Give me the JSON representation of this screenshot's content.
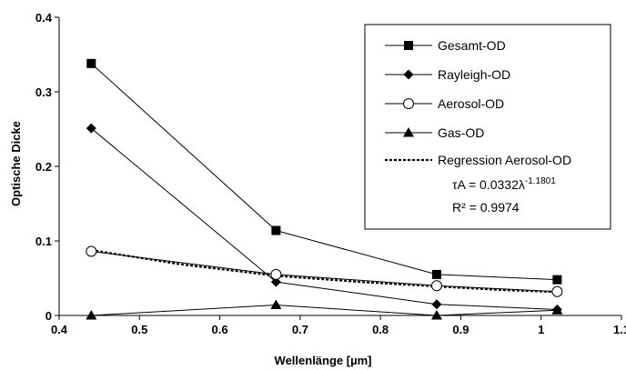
{
  "chart_data": {
    "type": "line",
    "xlabel": "Wellenlänge [µm]",
    "ylabel": "Optische Dicke",
    "xlim": [
      0.4,
      1.1
    ],
    "ylim": [
      0,
      0.4
    ],
    "x_ticks": [
      "0.4",
      "0.5",
      "0.6",
      "0.7",
      "0.8",
      "0.9",
      "1",
      "1.1"
    ],
    "y_ticks": [
      "0",
      "0.1",
      "0.2",
      "0.3",
      "0.4"
    ],
    "grid": false,
    "legend_position": "top-right",
    "x": [
      0.44,
      0.67,
      0.87,
      1.02
    ],
    "series": [
      {
        "name": "Gesamt-OD",
        "marker": "square",
        "values": [
          0.338,
          0.114,
          0.055,
          0.048
        ]
      },
      {
        "name": "Rayleigh-OD",
        "marker": "diamond",
        "values": [
          0.251,
          0.045,
          0.015,
          0.008
        ]
      },
      {
        "name": "Aerosol-OD",
        "marker": "open-circle",
        "values": [
          0.086,
          0.055,
          0.04,
          0.032
        ]
      },
      {
        "name": "Gas-OD",
        "marker": "triangle",
        "values": [
          0.0,
          0.014,
          0.0,
          0.007
        ]
      },
      {
        "name": "Regression Aerosol-OD",
        "style": "dashed",
        "marker": "none",
        "x": [
          0.44,
          0.55,
          0.67,
          0.78,
          0.87,
          0.95,
          1.02
        ],
        "values": [
          0.0877,
          0.0688,
          0.0532,
          0.0446,
          0.039,
          0.0342,
          0.0315
        ]
      }
    ],
    "annotation": {
      "tau_prefix": "τA = 0.0332λ",
      "tau_exponent": "-1.1801",
      "r2": "R² = 0.9974"
    }
  }
}
